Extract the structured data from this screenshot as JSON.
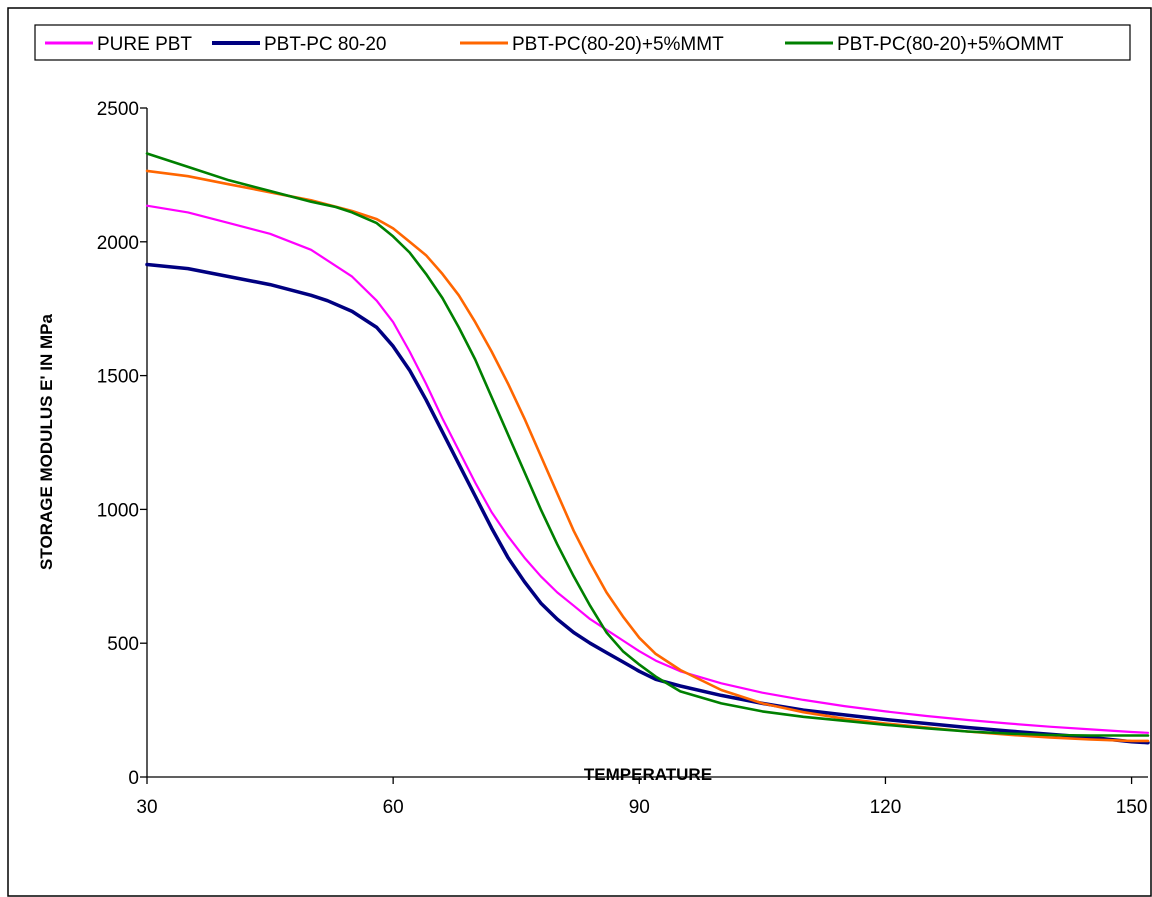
{
  "chart_data": {
    "type": "line",
    "title": "",
    "xlabel": "TEMPERATURE",
    "ylabel": "STORAGE MODULUS  E' IN MPa",
    "xlim": [
      30,
      152
    ],
    "ylim": [
      0,
      2500
    ],
    "xticks": [
      30,
      60,
      90,
      120,
      150
    ],
    "yticks": [
      0,
      500,
      1000,
      1500,
      2000,
      2500
    ],
    "grid": false,
    "legend_position": "top",
    "series": [
      {
        "name": "PURE PBT",
        "color": "#ff00ff",
        "x": [
          30,
          35,
          40,
          45,
          50,
          55,
          58,
          60,
          62,
          64,
          66,
          68,
          70,
          72,
          74,
          76,
          78,
          80,
          82,
          84,
          86,
          88,
          90,
          92,
          95,
          100,
          105,
          110,
          115,
          120,
          125,
          130,
          135,
          140,
          145,
          150,
          152
        ],
        "y": [
          2135,
          2110,
          2070,
          2030,
          1970,
          1870,
          1780,
          1700,
          1590,
          1470,
          1340,
          1220,
          1100,
          990,
          900,
          820,
          750,
          690,
          640,
          590,
          550,
          510,
          470,
          435,
          395,
          350,
          315,
          288,
          265,
          245,
          228,
          213,
          200,
          188,
          178,
          168,
          165
        ]
      },
      {
        "name": "PBT-PC 80-20",
        "color": "#000080",
        "x": [
          30,
          35,
          40,
          45,
          50,
          52,
          55,
          58,
          60,
          62,
          64,
          66,
          68,
          70,
          72,
          74,
          76,
          78,
          80,
          82,
          84,
          86,
          88,
          90,
          92,
          95,
          100,
          105,
          110,
          115,
          120,
          125,
          130,
          135,
          140,
          145,
          150,
          152
        ],
        "y": [
          1915,
          1900,
          1870,
          1840,
          1800,
          1780,
          1740,
          1680,
          1610,
          1520,
          1410,
          1290,
          1170,
          1050,
          930,
          820,
          730,
          650,
          590,
          540,
          500,
          465,
          430,
          395,
          365,
          340,
          305,
          275,
          250,
          232,
          215,
          200,
          185,
          172,
          160,
          148,
          132,
          128
        ]
      },
      {
        "name": "PBT-PC(80-20)+5%MMT",
        "color": "#ff6600",
        "x": [
          30,
          35,
          40,
          45,
          50,
          55,
          58,
          60,
          62,
          64,
          66,
          68,
          70,
          72,
          74,
          76,
          78,
          80,
          82,
          84,
          86,
          88,
          90,
          92,
          95,
          100,
          105,
          110,
          115,
          120,
          125,
          130,
          135,
          140,
          145,
          150,
          152
        ],
        "y": [
          2265,
          2245,
          2215,
          2185,
          2155,
          2115,
          2085,
          2050,
          2000,
          1950,
          1880,
          1800,
          1700,
          1590,
          1470,
          1340,
          1200,
          1060,
          920,
          800,
          690,
          600,
          520,
          460,
          400,
          325,
          275,
          242,
          218,
          200,
          185,
          170,
          158,
          148,
          140,
          135,
          135
        ]
      },
      {
        "name": "PBT-PC(80-20)+5%OMMT",
        "color": "#008000",
        "x": [
          30,
          35,
          40,
          45,
          50,
          53,
          55,
          58,
          60,
          62,
          64,
          66,
          68,
          70,
          72,
          74,
          76,
          78,
          80,
          82,
          84,
          86,
          88,
          90,
          92,
          95,
          100,
          105,
          110,
          115,
          120,
          125,
          130,
          135,
          140,
          145,
          150,
          152
        ],
        "y": [
          2330,
          2280,
          2230,
          2190,
          2150,
          2130,
          2110,
          2070,
          2020,
          1960,
          1880,
          1790,
          1680,
          1560,
          1420,
          1280,
          1140,
          1000,
          870,
          750,
          640,
          540,
          470,
          420,
          375,
          320,
          275,
          245,
          225,
          210,
          195,
          182,
          170,
          162,
          157,
          155,
          155,
          155
        ]
      }
    ]
  }
}
